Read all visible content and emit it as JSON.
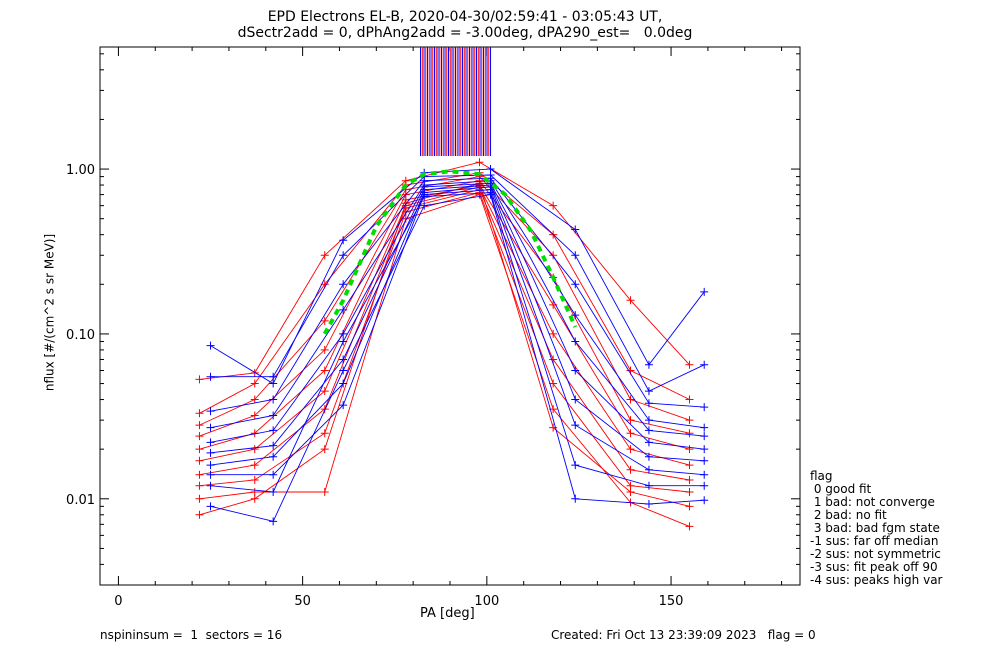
{
  "header": {
    "title_line1": "EPD Electrons EL-B, 2020-04-30/02:59:41 - 03:05:43 UT,",
    "title_line2": "dSectr2add = 0, dPhAng2add = -3.00deg, dPA290_est=   0.0deg"
  },
  "footer": {
    "left": "nspininsum =  1  sectors = 16",
    "right": "Created: Fri Oct 13 23:39:09 2023   flag = 0"
  },
  "legend": {
    "title": "flag",
    "items": [
      " 0 good fit",
      " 1 bad: not converge",
      " 2 bad: no fit",
      " 3 bad: bad fgm state",
      "-1 sus: far off median",
      "-2 sus: not symmetric",
      "-3 sus: fit peak off 90",
      "-4 sus: peaks high var"
    ]
  },
  "colors": {
    "red_series": "#ff0000",
    "blue_series": "#0000ff",
    "fit_dashed": "#00dd00",
    "axes": "#000000"
  },
  "chart_data": {
    "type": "line",
    "xlabel": "PA [deg]",
    "ylabel": "nflux [#/(cm^2 s sr MeV)]",
    "xlim": [
      -5,
      185
    ],
    "ylim": [
      0.003,
      5.5
    ],
    "yscale": "log",
    "x_ticks": [
      0,
      50,
      100,
      150
    ],
    "x_tick_labels": [
      "0",
      "50",
      "100",
      "150"
    ],
    "y_ticks": [
      0.01,
      0.1,
      1.0
    ],
    "y_tick_labels": [
      "0.01",
      "0.10",
      "1.00"
    ],
    "pa_bins": [
      22,
      25,
      37,
      42,
      56,
      61,
      78,
      83,
      98,
      101,
      118,
      124,
      139,
      144,
      155,
      159
    ],
    "series": [
      {
        "name": "Red sector traces",
        "color": "red",
        "traces": [
          {
            "x": [
              22,
              37,
              56,
              78,
              98,
              118,
              139,
              155
            ],
            "y": [
              0.053,
              0.058,
              0.3,
              0.85,
              1.1,
              0.6,
              0.16,
              0.065
            ]
          },
          {
            "x": [
              22,
              37,
              56,
              78,
              98,
              118,
              139,
              155
            ],
            "y": [
              0.033,
              0.05,
              0.2,
              0.8,
              0.95,
              0.4,
              0.06,
              0.04
            ]
          },
          {
            "x": [
              22,
              37,
              56,
              78,
              98,
              118,
              139,
              155
            ],
            "y": [
              0.028,
              0.04,
              0.12,
              0.75,
              0.9,
              0.3,
              0.04,
              0.03
            ]
          },
          {
            "x": [
              22,
              37,
              56,
              78,
              98,
              118,
              139,
              155
            ],
            "y": [
              0.024,
              0.032,
              0.08,
              0.7,
              0.85,
              0.22,
              0.03,
              0.025
            ]
          },
          {
            "x": [
              22,
              37,
              56,
              78,
              98,
              118,
              139,
              155
            ],
            "y": [
              0.02,
              0.025,
              0.06,
              0.65,
              0.8,
              0.15,
              0.025,
              0.02
            ]
          },
          {
            "x": [
              22,
              37,
              56,
              78,
              98,
              118,
              139,
              155
            ],
            "y": [
              0.017,
              0.02,
              0.045,
              0.6,
              0.78,
              0.1,
              0.02,
              0.016
            ]
          },
          {
            "x": [
              22,
              37,
              56,
              78,
              98,
              118,
              139,
              155
            ],
            "y": [
              0.014,
              0.016,
              0.035,
              0.58,
              0.75,
              0.07,
              0.015,
              0.013
            ]
          },
          {
            "x": [
              22,
              37,
              56,
              78,
              98,
              118,
              139,
              155
            ],
            "y": [
              0.012,
              0.013,
              0.025,
              0.55,
              0.72,
              0.05,
              0.012,
              0.011
            ]
          },
          {
            "x": [
              22,
              37,
              56,
              78,
              98,
              118,
              139,
              155
            ],
            "y": [
              0.01,
              0.011,
              0.011,
              0.5,
              0.7,
              0.035,
              0.0095,
              0.0068
            ]
          },
          {
            "x": [
              22,
              37,
              56,
              78,
              98,
              118,
              139,
              155
            ],
            "y": [
              0.008,
              0.01,
              0.02,
              0.62,
              0.82,
              0.027,
              0.011,
              0.009
            ]
          }
        ]
      },
      {
        "name": "Blue sector traces",
        "color": "blue",
        "traces": [
          {
            "x": [
              25,
              42,
              61,
              83,
              101,
              124,
              144,
              159
            ],
            "y": [
              0.085,
              0.05,
              0.37,
              0.95,
              1.0,
              0.43,
              0.065,
              0.18
            ]
          },
          {
            "x": [
              25,
              42,
              61,
              83,
              101,
              124,
              144,
              159
            ],
            "y": [
              0.055,
              0.055,
              0.3,
              0.9,
              0.92,
              0.3,
              0.045,
              0.065
            ]
          },
          {
            "x": [
              25,
              42,
              61,
              83,
              101,
              124,
              144,
              159
            ],
            "y": [
              0.034,
              0.04,
              0.2,
              0.85,
              0.88,
              0.2,
              0.038,
              0.036
            ]
          },
          {
            "x": [
              25,
              42,
              61,
              83,
              101,
              124,
              144,
              159
            ],
            "y": [
              0.027,
              0.032,
              0.14,
              0.8,
              0.85,
              0.13,
              0.03,
              0.027
            ]
          },
          {
            "x": [
              25,
              42,
              61,
              83,
              101,
              124,
              144,
              159
            ],
            "y": [
              0.022,
              0.026,
              0.1,
              0.78,
              0.82,
              0.09,
              0.026,
              0.024
            ]
          },
          {
            "x": [
              25,
              42,
              61,
              83,
              101,
              124,
              144,
              159
            ],
            "y": [
              0.019,
              0.021,
              0.07,
              0.75,
              0.8,
              0.06,
              0.022,
              0.02
            ]
          },
          {
            "x": [
              25,
              42,
              61,
              83,
              101,
              124,
              144,
              159
            ],
            "y": [
              0.016,
              0.018,
              0.05,
              0.72,
              0.78,
              0.04,
              0.018,
              0.017
            ]
          },
          {
            "x": [
              25,
              42,
              61,
              83,
              101,
              124,
              144,
              159
            ],
            "y": [
              0.014,
              0.014,
              0.037,
              0.7,
              0.75,
              0.028,
              0.015,
              0.014
            ]
          },
          {
            "x": [
              25,
              42,
              61,
              83,
              101,
              124,
              144,
              159
            ],
            "y": [
              0.012,
              0.011,
              0.09,
              0.68,
              0.72,
              0.016,
              0.012,
              0.012
            ]
          },
          {
            "x": [
              25,
              42,
              61,
              83,
              101,
              124,
              144,
              159
            ],
            "y": [
              0.009,
              0.0073,
              0.06,
              0.6,
              0.7,
              0.01,
              0.0093,
              0.0098
            ]
          }
        ]
      },
      {
        "name": "Fit curve",
        "color": "green",
        "style": "dashed",
        "x": [
          56,
          61,
          70,
          78,
          83,
          90,
          98,
          105,
          112,
          118,
          124
        ],
        "y": [
          0.1,
          0.16,
          0.45,
          0.8,
          0.93,
          0.97,
          0.93,
          0.7,
          0.42,
          0.22,
          0.11
        ]
      }
    ],
    "spike_cluster": {
      "x_min": 82,
      "x_max": 101,
      "y_min": 1.2,
      "y_max": 5.5,
      "colors": [
        "red",
        "blue"
      ]
    },
    "grid": false,
    "legend_position": "right-outside-bottom"
  }
}
